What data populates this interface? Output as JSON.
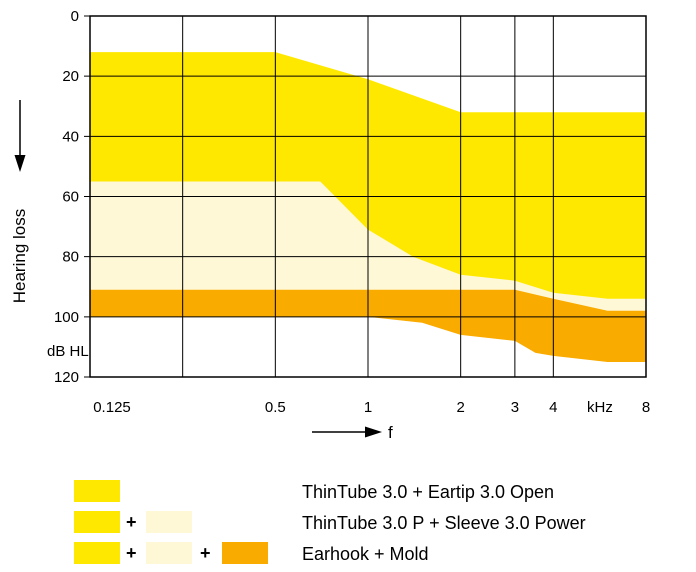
{
  "chart_data": {
    "type": "area",
    "title": "",
    "xlabel": "f",
    "ylabel": "Hearing loss",
    "y_unit_label": "dB HL",
    "x_unit_label": "kHz",
    "x_scale": "log2",
    "y_inverted": true,
    "xlim": [
      0.125,
      8
    ],
    "ylim": [
      0,
      120
    ],
    "x_ticks": [
      {
        "value": 0.125,
        "label": "0.125"
      },
      {
        "value": 0.5,
        "label": "0.5"
      },
      {
        "value": 1,
        "label": "1"
      },
      {
        "value": 2,
        "label": "2"
      },
      {
        "value": 3,
        "label": "3"
      },
      {
        "value": 4,
        "label": "4"
      },
      {
        "value": 8,
        "label": "8"
      }
    ],
    "x_gridlines": [
      0.125,
      0.25,
      0.5,
      1,
      2,
      3,
      4,
      8
    ],
    "y_ticks": [
      {
        "value": 0,
        "label": "0"
      },
      {
        "value": 20,
        "label": "20"
      },
      {
        "value": 40,
        "label": "40"
      },
      {
        "value": 60,
        "label": "60"
      },
      {
        "value": 80,
        "label": "80"
      },
      {
        "value": 100,
        "label": "100"
      },
      {
        "value": 120,
        "label": "120"
      }
    ],
    "grid": true,
    "series": [
      {
        "color": "#FFE800",
        "upper": [
          [
            0.125,
            12
          ],
          [
            0.5,
            12
          ],
          [
            1,
            21
          ],
          [
            2,
            32
          ],
          [
            8,
            32
          ]
        ],
        "lower": [
          [
            0.125,
            100
          ],
          [
            8,
            100
          ]
        ]
      },
      {
        "color": "#FFF8D6",
        "upper": [
          [
            0.125,
            55
          ],
          [
            0.7,
            55
          ],
          [
            1,
            71
          ],
          [
            1.4,
            80
          ],
          [
            2,
            86
          ],
          [
            3,
            88
          ],
          [
            4,
            92
          ],
          [
            6,
            94
          ],
          [
            8,
            94
          ]
        ],
        "lower": [
          [
            0.125,
            100
          ],
          [
            8,
            100
          ]
        ]
      },
      {
        "color": "#F9AB00",
        "upper": [
          [
            0.125,
            91
          ],
          [
            3,
            91
          ],
          [
            4,
            94
          ],
          [
            6,
            98
          ],
          [
            8,
            98
          ]
        ],
        "lower": [
          [
            0.125,
            100
          ],
          [
            1,
            100
          ],
          [
            1.5,
            102
          ],
          [
            2,
            106
          ],
          [
            3,
            108
          ],
          [
            3.5,
            112
          ],
          [
            4,
            113
          ],
          [
            6,
            115
          ],
          [
            8,
            115
          ]
        ]
      }
    ]
  },
  "legend": {
    "colors": {
      "yellow": "#FFE800",
      "cream": "#FFF8D6",
      "orange": "#F9AB00"
    },
    "plus": "+",
    "entries": [
      {
        "label": "ThinTube 3.0 + Eartip 3.0 Open"
      },
      {
        "label": "ThinTube 3.0 P + Sleeve 3.0 Power"
      },
      {
        "label": "Earhook + Mold"
      }
    ]
  }
}
